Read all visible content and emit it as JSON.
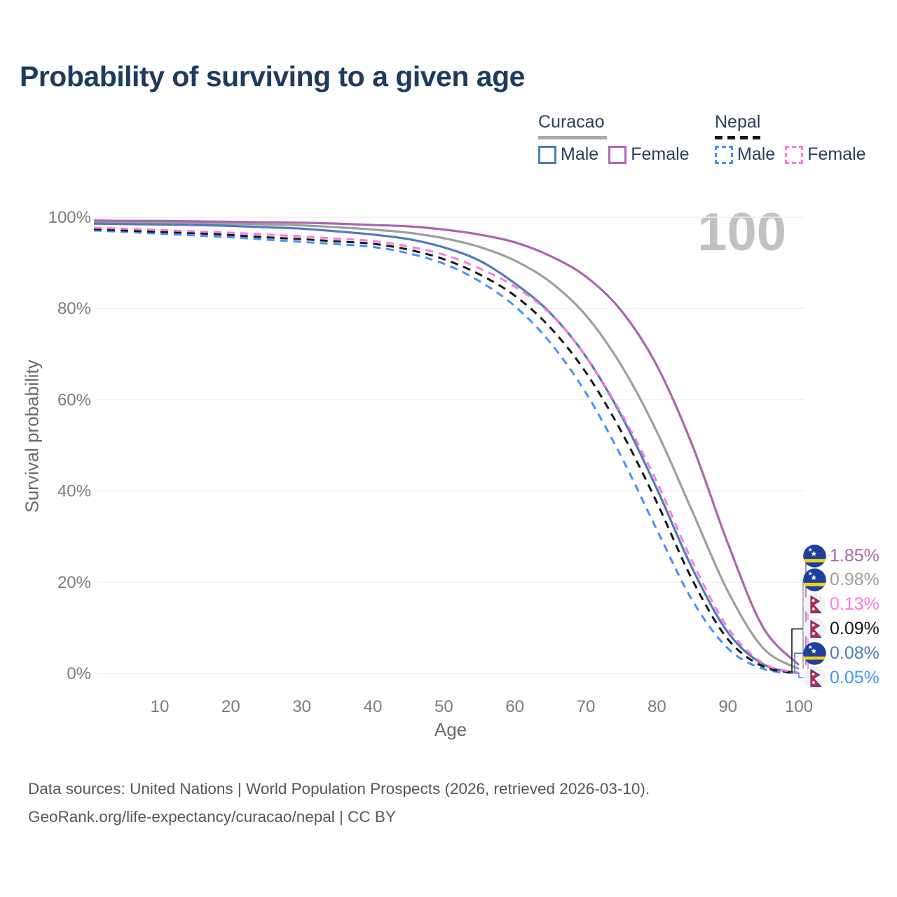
{
  "title": "Probability of surviving to a given age",
  "watermark_age": "100",
  "legend": {
    "groups": [
      {
        "name": "Curacao",
        "line_style": "solid",
        "items": [
          {
            "label": "Male",
            "color": "#4d7cb8"
          },
          {
            "label": "Female",
            "color": "#b565b5"
          }
        ]
      },
      {
        "name": "Nepal",
        "line_style": "dashed",
        "items": [
          {
            "label": "Male",
            "color": "#4292fe"
          },
          {
            "label": "Female",
            "color": "#ff77e2"
          }
        ]
      }
    ]
  },
  "chart_data": {
    "type": "line",
    "title": "Probability of surviving to a given age",
    "xlabel": "Age",
    "ylabel": "Survival probability",
    "xlim": [
      0,
      100
    ],
    "ylim": [
      0,
      100
    ],
    "x_ticks": [
      10,
      20,
      30,
      40,
      50,
      60,
      70,
      80,
      90,
      100
    ],
    "y_ticks": [
      0,
      20,
      40,
      60,
      80,
      100
    ],
    "y_tick_suffix": "%",
    "grid": "horizontal",
    "legend_position": "top-right",
    "x": [
      0,
      5,
      10,
      15,
      20,
      25,
      30,
      35,
      40,
      45,
      50,
      55,
      60,
      65,
      70,
      75,
      80,
      85,
      90,
      95,
      100
    ],
    "series": [
      {
        "name": "Curacao Female",
        "country": "Curacao",
        "sex": "Female",
        "line": "solid",
        "color": "#ab64ae",
        "flag": "curacao-flag",
        "end_label": "1.85%",
        "end_value": 1.85,
        "values": [
          99.3,
          99.2,
          99.2,
          99.1,
          99.0,
          98.9,
          98.8,
          98.6,
          98.3,
          98.0,
          97.3,
          96.2,
          94.5,
          91.5,
          87.0,
          79.5,
          67.5,
          50.0,
          28.5,
          10.0,
          1.85
        ]
      },
      {
        "name": "Curacao",
        "country": "Curacao",
        "sex": "Both",
        "line": "solid",
        "color": "#9e9e9e",
        "flag": "curacao-flag",
        "end_label": "0.98%",
        "end_value": 0.98,
        "values": [
          99.0,
          98.9,
          98.8,
          98.7,
          98.6,
          98.4,
          98.2,
          97.8,
          97.3,
          96.6,
          95.4,
          93.5,
          90.5,
          85.8,
          78.5,
          67.5,
          53.0,
          35.5,
          18.0,
          5.5,
          0.98
        ]
      },
      {
        "name": "Nepal Female",
        "country": "Nepal",
        "sex": "Female",
        "line": "dashed",
        "color": "#ff77e2",
        "flag": "nepal-flag",
        "end_label": "0.13%",
        "end_value": 0.13,
        "values": [
          97.7,
          97.5,
          97.2,
          96.9,
          96.6,
          96.2,
          95.8,
          95.3,
          94.8,
          93.6,
          91.8,
          88.8,
          84.8,
          78.8,
          69.5,
          57.0,
          42.0,
          24.5,
          10.0,
          2.2,
          0.13
        ]
      },
      {
        "name": "Nepal",
        "country": "Nepal",
        "sex": "Both",
        "line": "dashed",
        "color": "#161616",
        "flag": "nepal-flag",
        "end_label": "0.09%",
        "end_value": 0.09,
        "values": [
          97.4,
          97.1,
          96.8,
          96.5,
          96.1,
          95.6,
          95.2,
          94.7,
          94.2,
          92.9,
          90.8,
          87.5,
          82.8,
          75.8,
          66.0,
          53.0,
          37.5,
          20.5,
          7.5,
          1.5,
          0.09
        ]
      },
      {
        "name": "Curacao Male",
        "country": "Curacao",
        "sex": "Male",
        "line": "solid",
        "color": "#4d7cb8",
        "flag": "curacao-flag",
        "end_label": "0.08%",
        "end_value": 0.08,
        "values": [
          98.6,
          98.5,
          98.4,
          98.3,
          98.1,
          97.8,
          97.5,
          96.9,
          96.2,
          95.2,
          93.4,
          90.5,
          85.5,
          79.0,
          69.5,
          56.5,
          40.5,
          23.0,
          9.0,
          2.0,
          0.08
        ]
      },
      {
        "name": "Nepal Male",
        "country": "Nepal",
        "sex": "Male",
        "line": "dashed",
        "color": "#4292fe",
        "flag": "nepal-flag",
        "end_label": "0.05%",
        "end_value": 0.05,
        "values": [
          97.1,
          96.8,
          96.4,
          96.0,
          95.6,
          95.1,
          94.6,
          94.1,
          93.5,
          92.1,
          89.8,
          86.0,
          80.5,
          72.5,
          61.5,
          47.5,
          31.5,
          16.0,
          5.5,
          1.0,
          0.05
        ]
      }
    ]
  },
  "footer": {
    "line1": "Data sources: United Nations | World Population Prospects (2026, retrieved 2026-03-10).",
    "line2": "GeoRank.org/life-expectancy/curacao/nepal | CC BY"
  }
}
